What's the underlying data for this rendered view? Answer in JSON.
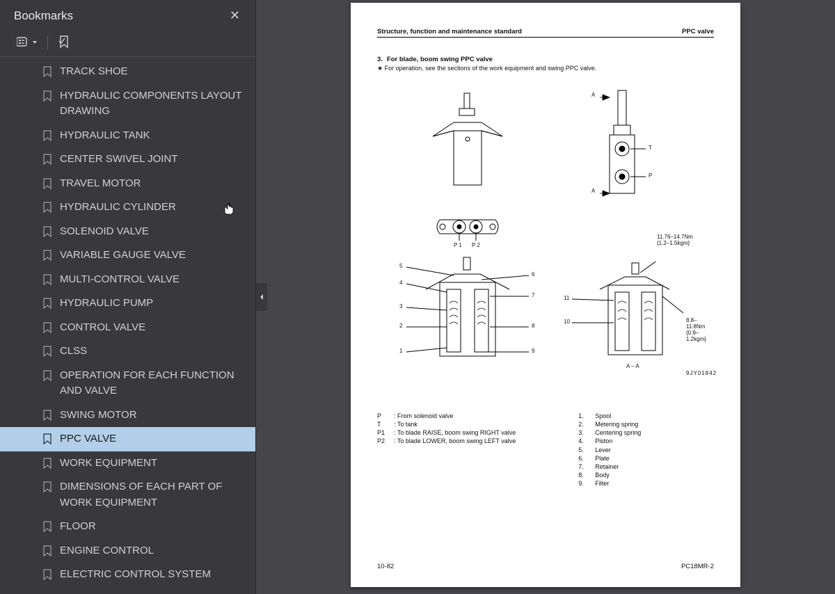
{
  "sidebar": {
    "title": "Bookmarks",
    "close_glyph": "✕",
    "items": [
      {
        "label": "TRACK SHOE",
        "active": false
      },
      {
        "label": "HYDRAULIC COMPONENTS LAYOUT DRAWING",
        "active": false
      },
      {
        "label": "HYDRAULIC TANK",
        "active": false
      },
      {
        "label": "CENTER SWIVEL JOINT",
        "active": false
      },
      {
        "label": "TRAVEL MOTOR",
        "active": false
      },
      {
        "label": "HYDRAULIC CYLINDER",
        "active": false
      },
      {
        "label": "SOLENOID VALVE",
        "active": false
      },
      {
        "label": "VARIABLE GAUGE VALVE",
        "active": false
      },
      {
        "label": "MULTI-CONTROL VALVE",
        "active": false
      },
      {
        "label": "HYDRAULIC PUMP",
        "active": false
      },
      {
        "label": "CONTROL VALVE",
        "active": false
      },
      {
        "label": "CLSS",
        "active": false
      },
      {
        "label": "OPERATION FOR EACH FUNCTION AND VALVE",
        "active": false
      },
      {
        "label": "SWING MOTOR",
        "active": false
      },
      {
        "label": "PPC VALVE",
        "active": true
      },
      {
        "label": "WORK EQUIPMENT",
        "active": false
      },
      {
        "label": "DIMENSIONS OF EACH PART OF WORK EQUIPMENT",
        "active": false
      },
      {
        "label": "FLOOR",
        "active": false
      },
      {
        "label": "ENGINE CONTROL",
        "active": false
      },
      {
        "label": "ELECTRIC CONTROL SYSTEM",
        "active": false
      }
    ]
  },
  "page": {
    "header_left": "Structure, function and maintenance standard",
    "header_right": "PPC valve",
    "section_num": "3.",
    "section_title": "For blade, boom swing PPC valve",
    "note": "For operation, see the sections of the work equipment and swing PPC valve.",
    "torque1_line1": "11.76–14.7Nm",
    "torque1_line2": "{1.2–1.5kgm}",
    "torque2_line1": "8.8–11.8Nm",
    "torque2_line2": "{0.9–1.2kgm}",
    "section_label": "A – A",
    "drawing_code": "9JY01842",
    "p1_label": "P 1",
    "p2_label": "P 2",
    "a_up": "A",
    "a_dn": "A",
    "t_label": "T",
    "p_label": "P",
    "legend_left": [
      {
        "k": "P",
        "v": ": From solenoid valve"
      },
      {
        "k": "T",
        "v": ": To tank"
      },
      {
        "k": "P1",
        "v": ": To blade RAISE, boom swing RIGHT valve"
      },
      {
        "k": "P2",
        "v": ": To blade LOWER, boom swing LEFT valve"
      }
    ],
    "legend_right": [
      {
        "k": "1.",
        "v": "Spool"
      },
      {
        "k": "2.",
        "v": "Metering spring"
      },
      {
        "k": "3.",
        "v": "Centering spring"
      },
      {
        "k": "4.",
        "v": "Piston"
      },
      {
        "k": "5.",
        "v": "Lever"
      },
      {
        "k": "6.",
        "v": "Plate"
      },
      {
        "k": "7.",
        "v": "Retainer"
      },
      {
        "k": "8.",
        "v": "Body"
      },
      {
        "k": "9.",
        "v": "Filter"
      }
    ],
    "callouts_left": [
      "5",
      "4",
      "3",
      "2",
      "1",
      "6",
      "7",
      "8",
      "9"
    ],
    "callouts_right": [
      "11",
      "10"
    ],
    "footer_left": "10-82",
    "footer_right": "PC18MR-2"
  },
  "colors": {
    "sidebar_bg": "#38383d",
    "viewer_bg": "#45454a",
    "page_bg": "#ffffff",
    "active_bg": "#b2cee8",
    "text_light": "#d0d0d2",
    "text_dark": "#1a1a1a"
  }
}
